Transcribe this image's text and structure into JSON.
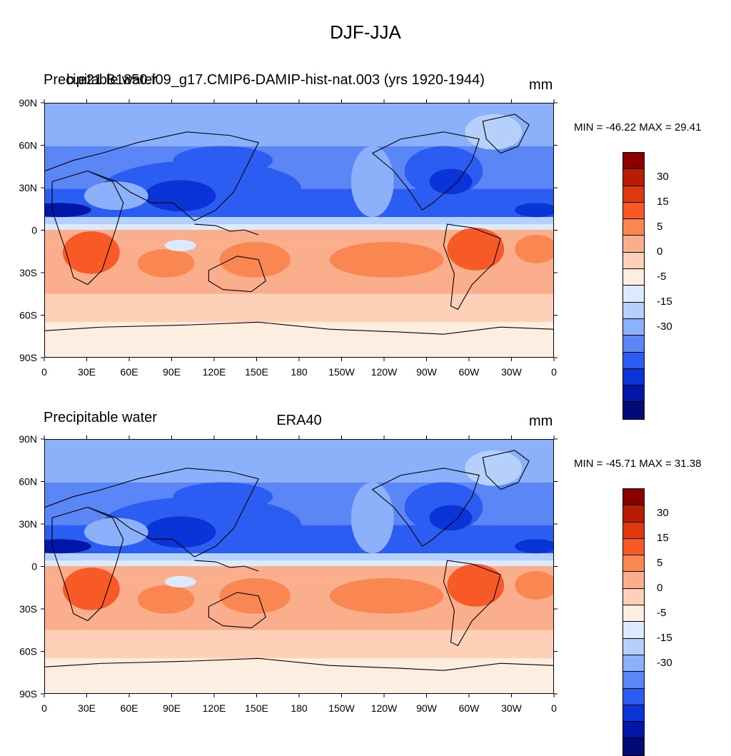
{
  "figure": {
    "title": "DJF-JJA"
  },
  "panels": [
    {
      "left_title": "Precipitable water",
      "overlap_title": "b.e21.B1850.f09_g17.CMIP6-DAMIP-hist-nat.003 (yrs 1920-1944)",
      "center_title": "",
      "units": "mm",
      "stats": "MIN = -46.22 MAX =  29.41"
    },
    {
      "left_title": "Precipitable water",
      "overlap_title": "",
      "center_title": "ERA40",
      "units": "mm",
      "stats": "MIN = -45.71 MAX =  31.38"
    }
  ],
  "axes": {
    "lat_labels": [
      "90N",
      "60N",
      "30N",
      "0",
      "30S",
      "60S",
      "90S"
    ],
    "lon_labels": [
      "0",
      "30E",
      "60E",
      "90E",
      "120E",
      "150E",
      "180",
      "150W",
      "120W",
      "90W",
      "60W",
      "30W",
      "0"
    ]
  },
  "colorbar": {
    "colors_top_to_bottom": [
      "#8a0000",
      "#b81c04",
      "#e0380e",
      "#f75a26",
      "#fa8752",
      "#fbae8c",
      "#fdd1b8",
      "#feeee2",
      "#dbeafc",
      "#b4d0fb",
      "#8db0fa",
      "#5b87f6",
      "#2b5df3",
      "#0a34d8",
      "#0017a8",
      "#000a78"
    ],
    "tick_labels": [
      "30",
      "15",
      "5",
      "0",
      "-5",
      "-15",
      "-30"
    ]
  }
}
